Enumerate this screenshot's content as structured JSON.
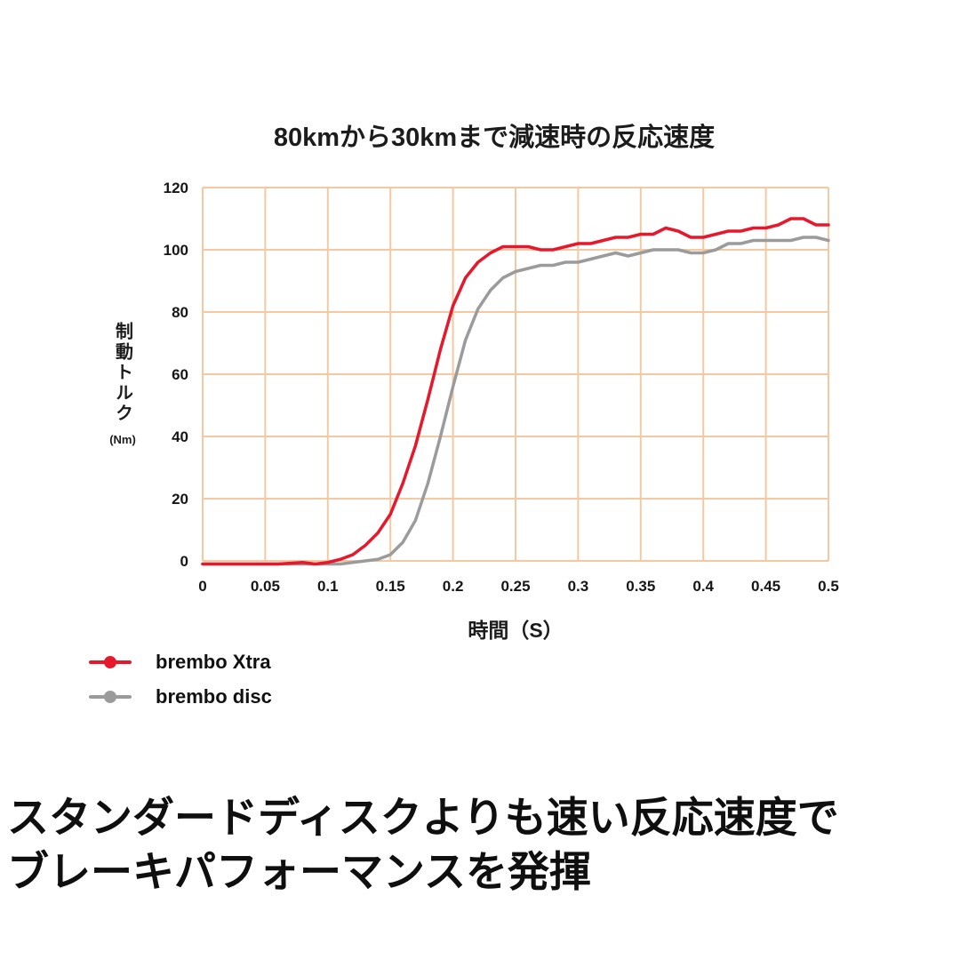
{
  "chart_data": {
    "type": "line",
    "title": "80kmから30kmまで減速時の反応速度",
    "xlabel": "時間（S）",
    "ylabel_text": "制動トルク",
    "ylabel_unit": "(Nm)",
    "xlim": [
      0,
      0.5
    ],
    "ylim": [
      0,
      120
    ],
    "grid": true,
    "grid_color": "#f4c9a1",
    "legend_position": "bottom-left",
    "x_ticks": {
      "values": [
        0,
        0.05,
        0.1,
        0.15,
        0.2,
        0.25,
        0.3,
        0.35,
        0.4,
        0.45,
        0.5
      ],
      "labels": [
        "0",
        "0.05",
        "0.1",
        "0.15",
        "0.2",
        "0.25",
        "0.3",
        "0.35",
        "0.4",
        "0.45",
        "0.5"
      ]
    },
    "y_ticks": {
      "values": [
        0,
        20,
        40,
        60,
        80,
        100,
        120
      ],
      "labels": [
        "0",
        "20",
        "40",
        "60",
        "80",
        "100",
        "120"
      ]
    },
    "series": [
      {
        "name": "brembo Xtra",
        "color": "#e7182b",
        "x": [
          0,
          0.02,
          0.04,
          0.06,
          0.08,
          0.09,
          0.1,
          0.11,
          0.12,
          0.13,
          0.14,
          0.15,
          0.16,
          0.17,
          0.18,
          0.19,
          0.2,
          0.21,
          0.22,
          0.23,
          0.24,
          0.25,
          0.26,
          0.27,
          0.28,
          0.29,
          0.3,
          0.31,
          0.32,
          0.33,
          0.34,
          0.35,
          0.36,
          0.37,
          0.38,
          0.39,
          0.4,
          0.41,
          0.42,
          0.43,
          0.44,
          0.45,
          0.46,
          0.47,
          0.48,
          0.49,
          0.5
        ],
        "values": [
          -1,
          -1,
          -1,
          -1,
          -0.5,
          -1,
          -0.5,
          0.5,
          2,
          5,
          9,
          15,
          25,
          37,
          52,
          68,
          82,
          91,
          96,
          99,
          101,
          101,
          101,
          100,
          100,
          101,
          102,
          102,
          103,
          104,
          104,
          105,
          105,
          107,
          106,
          104,
          104,
          105,
          106,
          106,
          107,
          107,
          108,
          110,
          110,
          108,
          108
        ]
      },
      {
        "name": "brembo disc",
        "color": "#9b9b9b",
        "x": [
          0,
          0.02,
          0.04,
          0.06,
          0.08,
          0.09,
          0.1,
          0.11,
          0.12,
          0.13,
          0.14,
          0.15,
          0.16,
          0.17,
          0.18,
          0.19,
          0.2,
          0.21,
          0.22,
          0.23,
          0.24,
          0.25,
          0.26,
          0.27,
          0.28,
          0.29,
          0.3,
          0.31,
          0.32,
          0.33,
          0.34,
          0.35,
          0.36,
          0.37,
          0.38,
          0.39,
          0.4,
          0.41,
          0.42,
          0.43,
          0.44,
          0.45,
          0.46,
          0.47,
          0.48,
          0.49,
          0.5
        ],
        "values": [
          -1,
          -1,
          -1,
          -1,
          -1,
          -1,
          -1,
          -1,
          -0.5,
          0,
          0.5,
          2,
          6,
          13,
          25,
          40,
          56,
          71,
          81,
          87,
          91,
          93,
          94,
          95,
          95,
          96,
          96,
          97,
          98,
          99,
          98,
          99,
          100,
          100,
          100,
          99,
          99,
          100,
          102,
          102,
          103,
          103,
          103,
          103,
          104,
          104,
          103
        ]
      }
    ]
  },
  "caption": {
    "line1": "スタンダードディスクよりも速い反応速度で",
    "line2": "ブレーキパフォーマンスを発揮"
  }
}
